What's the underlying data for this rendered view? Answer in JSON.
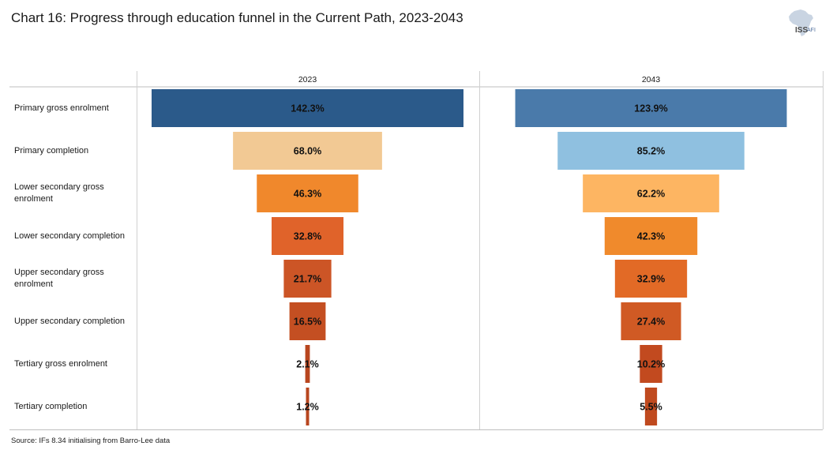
{
  "title": "Chart 16: Progress through education funnel in the Current Path, 2023-2043",
  "source": "Source: IFs 8.34 initialising from Barro-Lee data",
  "logo": {
    "text_main": "ISS",
    "text_sub": "AFI"
  },
  "chart_data": {
    "type": "bar",
    "subtype": "funnel",
    "title": "Chart 16: Progress through education funnel in the Current Path, 2023-2043",
    "categories": [
      "Primary gross enrolment",
      "Primary completion",
      "Lower secondary gross enrolment",
      "Lower secondary completion",
      "Upper secondary gross enrolment",
      "Upper secondary completion",
      "Tertiary gross enrolment",
      "Tertiary completion"
    ],
    "series": [
      {
        "name": "2023",
        "values": [
          142.3,
          68.0,
          46.3,
          32.8,
          21.7,
          16.5,
          2.1,
          1.2
        ],
        "labels": [
          "142.3%",
          "68.0%",
          "46.3%",
          "32.8%",
          "21.7%",
          "16.5%",
          "2.1%",
          "1.2%"
        ],
        "colors": [
          "#2b5a8a",
          "#f2c994",
          "#f0882c",
          "#e0632a",
          "#cc5526",
          "#c44f22",
          "#b8461f",
          "#b8461f"
        ]
      },
      {
        "name": "2043",
        "values": [
          123.9,
          85.2,
          62.2,
          42.3,
          32.9,
          27.4,
          10.2,
          5.5
        ],
        "labels": [
          "123.9%",
          "85.2%",
          "62.2%",
          "42.3%",
          "32.9%",
          "27.4%",
          "10.2%",
          "5.5%"
        ],
        "colors": [
          "#4a7aaa",
          "#8fc0e0",
          "#fdb562",
          "#f08a2c",
          "#e26a26",
          "#d05a24",
          "#c24a1f",
          "#c04a1f"
        ]
      }
    ],
    "value_scale_max": 142.3,
    "xlabel": "",
    "ylabel": ""
  }
}
